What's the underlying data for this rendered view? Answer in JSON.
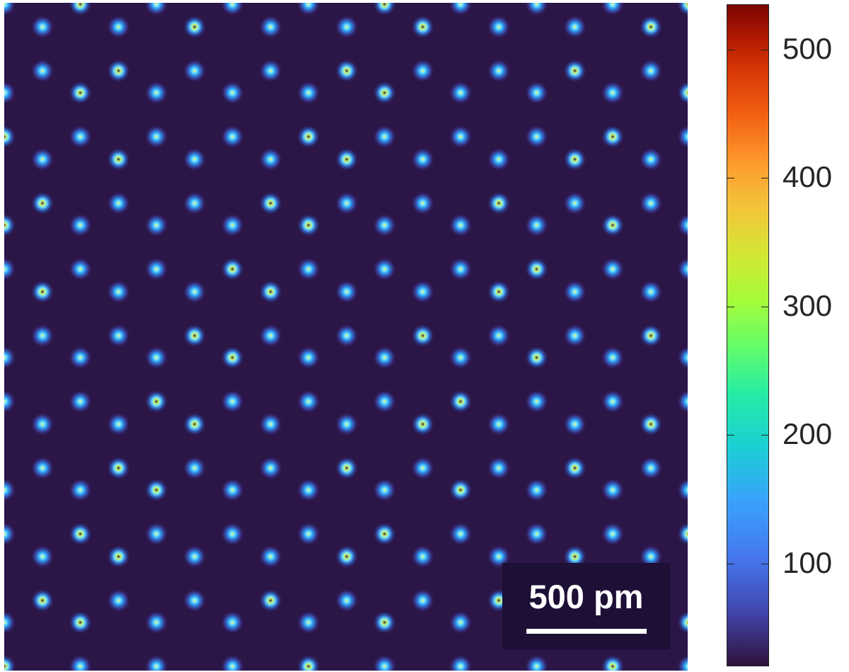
{
  "image": {
    "scale_bar": {
      "label": "500 pm"
    }
  },
  "colorbar": {
    "ticks": [
      "100",
      "200",
      "300",
      "400",
      "500"
    ],
    "min_value": 20,
    "max_value": 535,
    "colormap": "turbo",
    "low_color": "#30123b",
    "high_color": "#7a0402"
  }
}
